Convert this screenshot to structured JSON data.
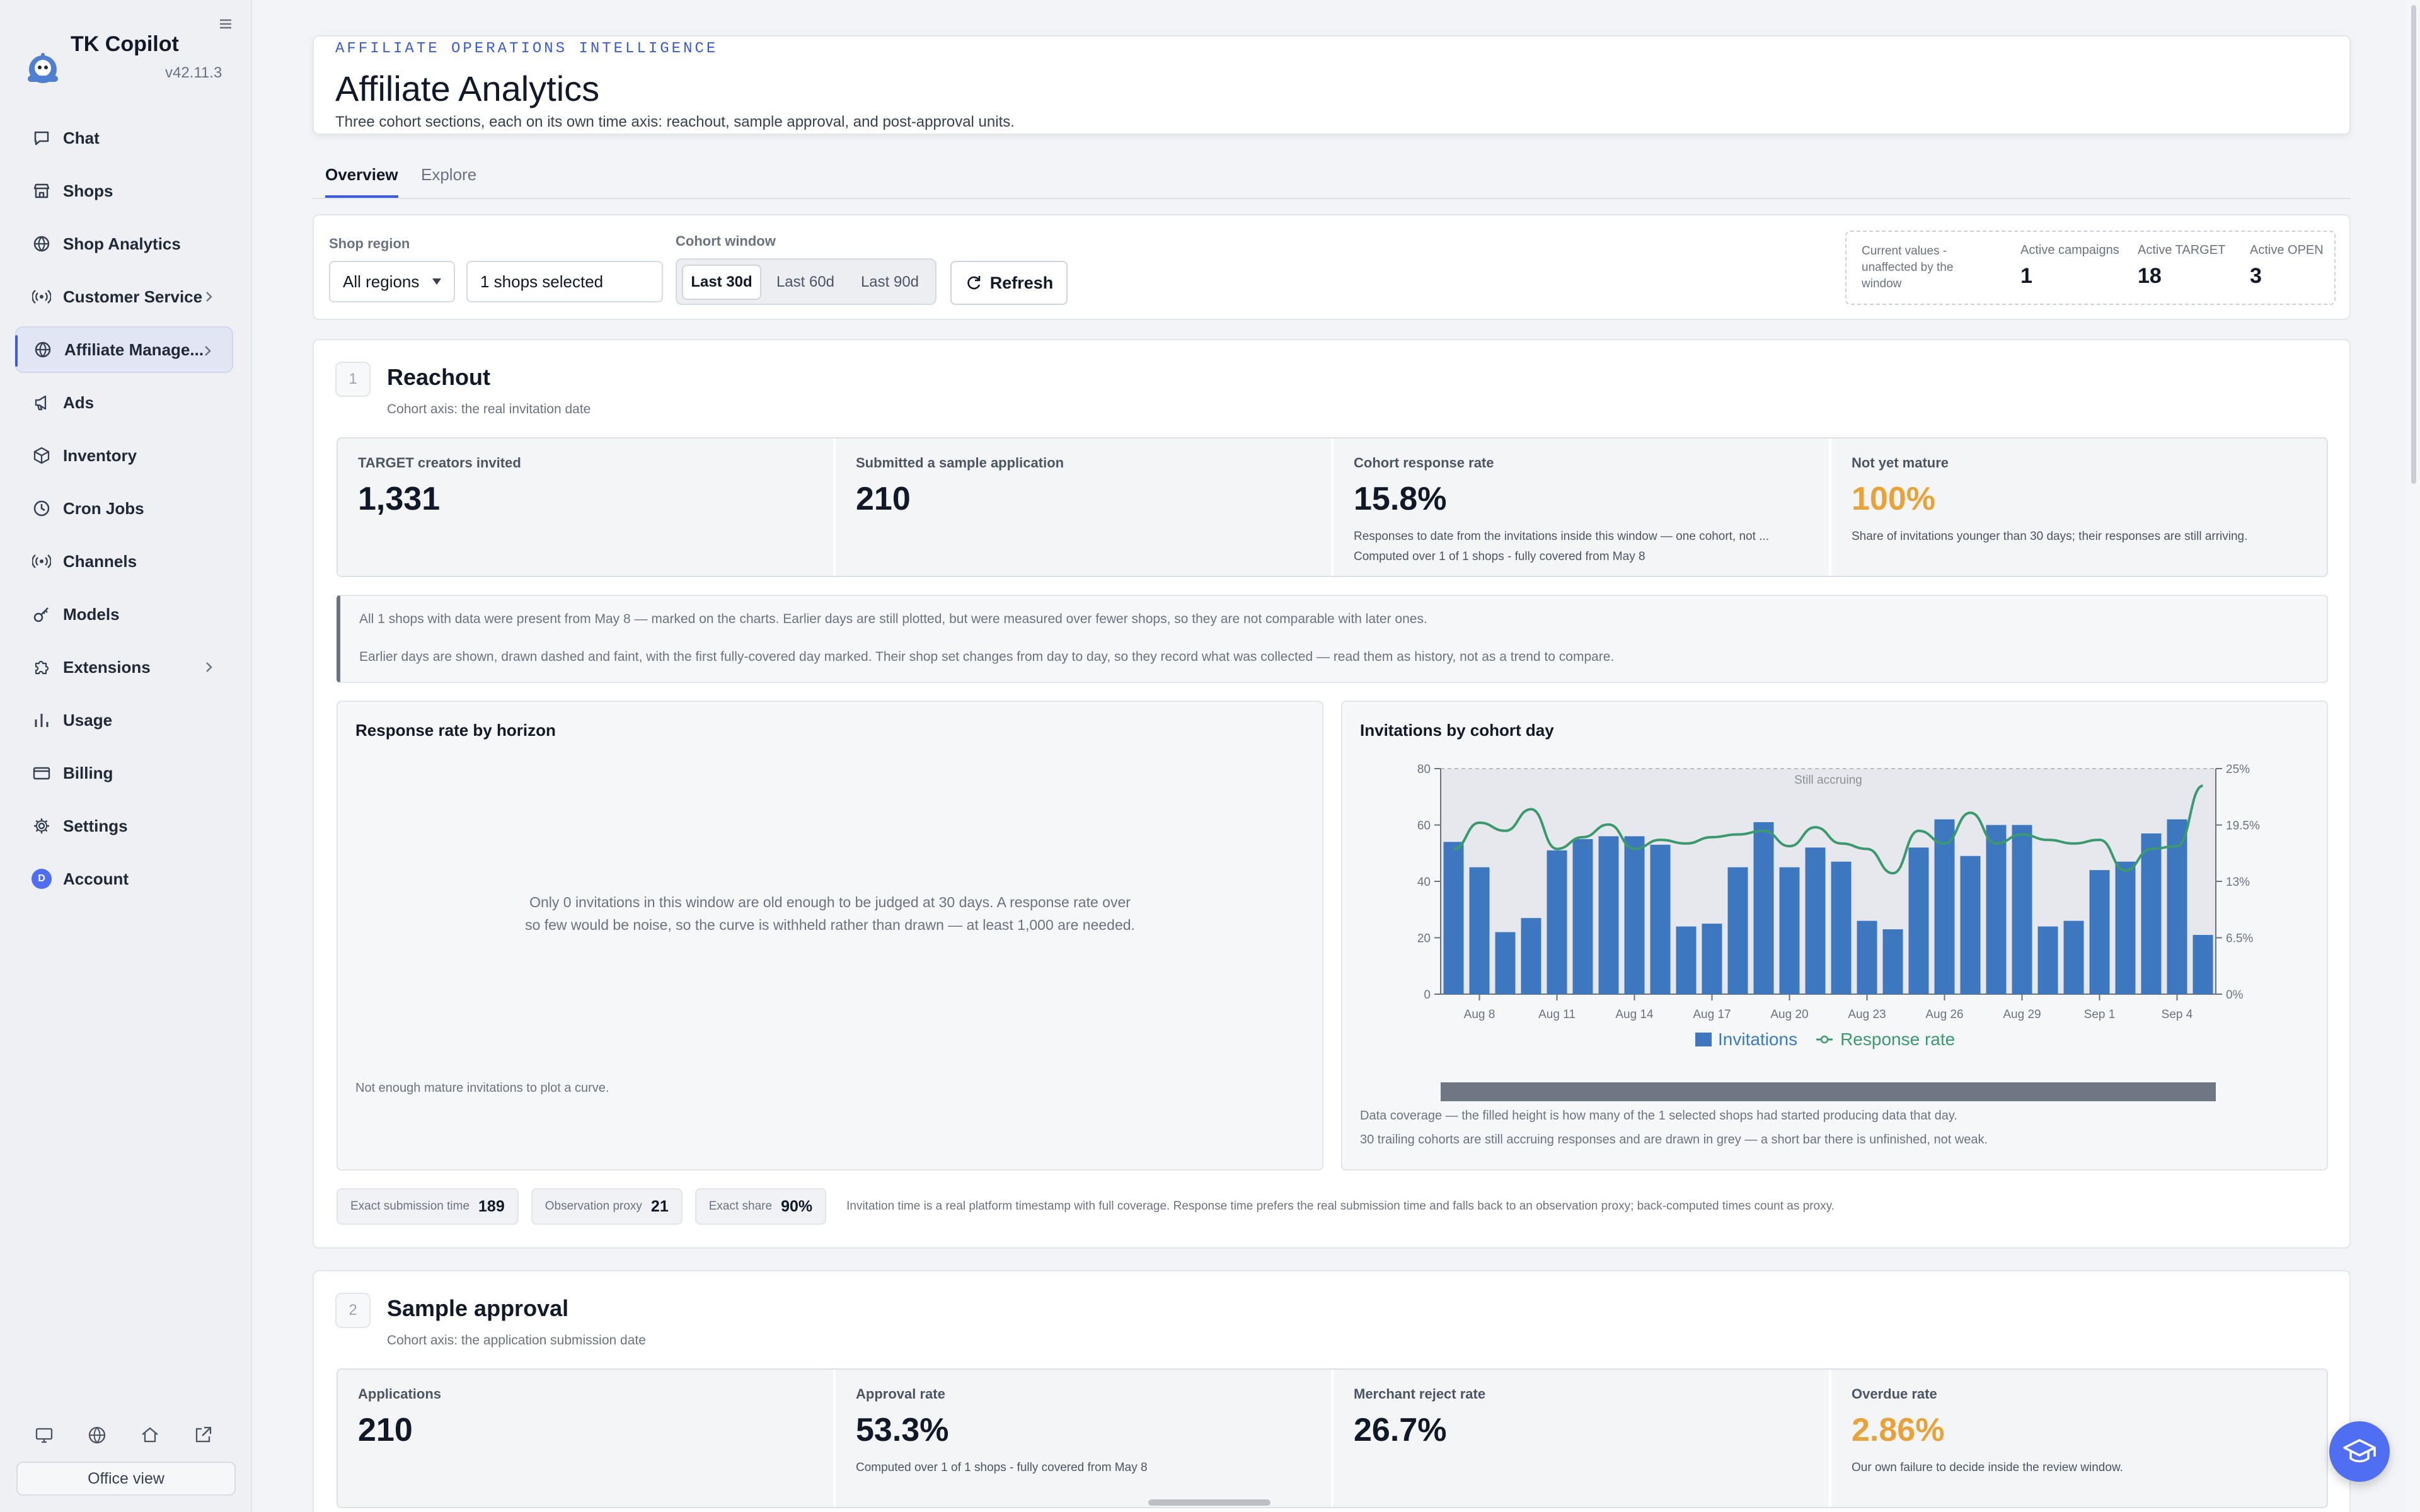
{
  "app": {
    "name": "TK Copilot",
    "version": "v42.11.3"
  },
  "nav": [
    {
      "label": "Chat",
      "icon": "chat-icon"
    },
    {
      "label": "Shops",
      "icon": "store-icon"
    },
    {
      "label": "Shop Analytics",
      "icon": "globe-icon"
    },
    {
      "label": "Customer Service",
      "icon": "broadcast-icon",
      "chevron": true
    },
    {
      "label": "Affiliate Manage...",
      "icon": "globe-icon",
      "chevron": true,
      "active": true
    },
    {
      "label": "Ads",
      "icon": "megaphone-icon"
    },
    {
      "label": "Inventory",
      "icon": "box-icon"
    },
    {
      "label": "Cron Jobs",
      "icon": "clock-icon"
    },
    {
      "label": "Channels",
      "icon": "broadcast-icon"
    },
    {
      "label": "Models",
      "icon": "key-icon"
    },
    {
      "label": "Extensions",
      "icon": "puzzle-icon",
      "chevron": true
    },
    {
      "label": "Usage",
      "icon": "bar-chart-icon"
    },
    {
      "label": "Billing",
      "icon": "card-icon"
    },
    {
      "label": "Settings",
      "icon": "gear-icon"
    },
    {
      "label": "Account",
      "icon": "avatar",
      "avatar_letter": "D"
    }
  ],
  "bottom": {
    "office_label": "Office view"
  },
  "header": {
    "eyebrow": "AFFILIATE OPERATIONS INTELLIGENCE",
    "title": "Affiliate Analytics",
    "subtitle": "Three cohort sections, each on its own time axis: reachout, sample approval, and post-approval units."
  },
  "tabs": [
    "Overview",
    "Explore"
  ],
  "filters": {
    "region_label": "Shop region",
    "region_value": "All regions",
    "shops_value": "1 shops selected",
    "window_label": "Cohort window",
    "windows": [
      "Last 30d",
      "Last 60d",
      "Last 90d"
    ],
    "refresh_label": "Refresh",
    "current_note": "Current values - unaffected by the window",
    "active_campaigns_label": "Active campaigns",
    "active_campaigns": "1",
    "active_target_label": "Active TARGET",
    "active_target": "18",
    "active_open_label": "Active OPEN",
    "active_open": "3"
  },
  "reachout": {
    "num": "1",
    "title": "Reachout",
    "subtitle": "Cohort axis: the real invitation date",
    "metrics": [
      {
        "label": "TARGET creators invited",
        "value": "1,331"
      },
      {
        "label": "Submitted a sample application",
        "value": "210"
      },
      {
        "label": "Cohort response rate",
        "value": "15.8%",
        "desc1": "Responses to date from the invitations inside this window — one cohort, not ...",
        "desc2": "Computed over 1 of 1 shops - fully covered from May 8"
      },
      {
        "label": "Not yet mature",
        "value": "100%",
        "desc1": "Share of invitations younger than 30 days; their responses are still arriving."
      }
    ],
    "notice1": "All 1 shops with data were present from May 8 — marked on the charts. Earlier days are still plotted, but were measured over fewer shops, so they are not comparable with later ones.",
    "notice2": "Earlier days are shown, drawn dashed and faint, with the first fully-covered day marked. Their shop set changes from day to day, so they record what was collected — read them as history, not as a trend to compare.",
    "horizon": {
      "title": "Response rate by horizon",
      "msg1": "Only 0 invitations in this window are old enough to be judged at 30 days. A response rate over",
      "msg2": "so few would be noise, so the curve is withheld rather than drawn — at least 1,000 are needed.",
      "foot": "Not enough mature invitations to plot a curve."
    },
    "cohort_chart": {
      "title": "Invitations by cohort day",
      "foot1": "Data coverage — the filled height is how many of the 1 selected shops had started producing data that day.",
      "foot2": "30 trailing cohorts are still accruing responses and are drawn in grey — a short bar there is unfinished, not weak."
    },
    "chips": [
      {
        "label": "Exact submission time",
        "value": "189"
      },
      {
        "label": "Observation proxy",
        "value": "21"
      },
      {
        "label": "Exact share",
        "value": "90%"
      }
    ],
    "chips_note": "Invitation time is a real platform timestamp with full coverage. Response time prefers the real submission time and falls back to an observation proxy; back-computed times count as proxy."
  },
  "approval": {
    "num": "2",
    "title": "Sample approval",
    "subtitle": "Cohort axis: the application submission date",
    "metrics": [
      {
        "label": "Applications",
        "value": "210"
      },
      {
        "label": "Approval rate",
        "value": "53.3%",
        "desc1": "Computed over 1 of 1 shops - fully covered from May 8"
      },
      {
        "label": "Merchant reject rate",
        "value": "26.7%"
      },
      {
        "label": "Overdue rate",
        "value": "2.86%",
        "desc1": "Our own failure to decide inside the review window."
      }
    ]
  },
  "chart_data": {
    "type": "bar",
    "title": "Invitations by cohort day",
    "categories": [
      "Aug 7",
      "Aug 8",
      "Aug 9",
      "Aug 10",
      "Aug 11",
      "Aug 12",
      "Aug 13",
      "Aug 14",
      "Aug 15",
      "Aug 16",
      "Aug 17",
      "Aug 18",
      "Aug 19",
      "Aug 20",
      "Aug 21",
      "Aug 22",
      "Aug 23",
      "Aug 24",
      "Aug 25",
      "Aug 26",
      "Aug 27",
      "Aug 28",
      "Aug 29",
      "Aug 30",
      "Aug 31",
      "Sep 1",
      "Sep 2",
      "Sep 3",
      "Sep 4",
      "Sep 5"
    ],
    "tick_labels": [
      "Aug 8",
      "Aug 11",
      "Aug 14",
      "Aug 17",
      "Aug 20",
      "Aug 23",
      "Aug 26",
      "Aug 29",
      "Sep 1",
      "Sep 4"
    ],
    "series": [
      {
        "name": "Invitations",
        "axis": "left",
        "values": [
          54,
          45,
          22,
          27,
          51,
          55,
          56,
          56,
          53,
          24,
          25,
          45,
          61,
          45,
          52,
          47,
          26,
          23,
          52,
          62,
          49,
          60,
          60,
          24,
          26,
          44,
          47,
          57,
          62,
          21
        ]
      },
      {
        "name": "Response rate",
        "axis": "right",
        "unit": "%",
        "values": [
          16.1,
          19,
          18.1,
          20.5,
          16.1,
          17.4,
          18.8,
          16.1,
          17.1,
          16.7,
          17.4,
          17.7,
          18.1,
          16.4,
          18.5,
          16.7,
          16.1,
          13.4,
          18.1,
          16.7,
          20.1,
          16.7,
          17.7,
          17.1,
          16.7,
          17.1,
          13.7,
          16.1,
          16.4,
          23.1
        ]
      }
    ],
    "ylim": [
      0,
      80
    ],
    "y2lim": [
      0,
      25
    ],
    "yticks": [
      "0",
      "20",
      "40",
      "60",
      "80"
    ],
    "y2ticks": [
      "0%",
      "6.5%",
      "13%",
      "19.5%",
      "25%"
    ],
    "annotation": "Still accruing",
    "colors": {
      "bar": "#3d77c0",
      "line": "#3a9a6e",
      "shade": "#e2e4ea",
      "coverage": "#6f7785"
    }
  }
}
